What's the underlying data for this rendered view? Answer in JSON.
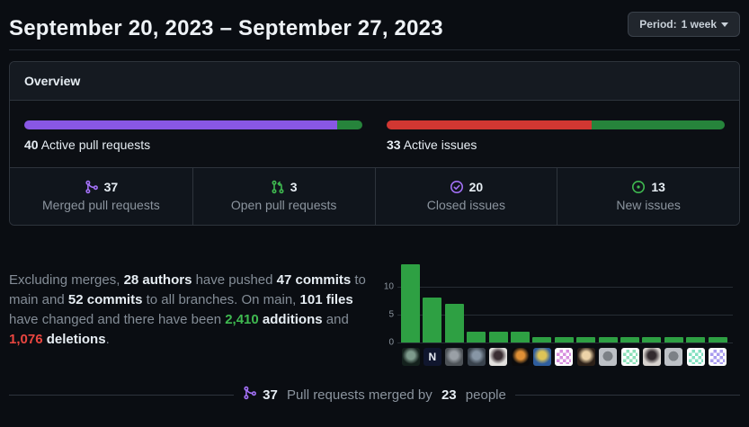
{
  "header": {
    "title": "September 20, 2023 – September 27, 2023",
    "period_button": {
      "prefix": "Period:",
      "value": "1 week"
    }
  },
  "overview": {
    "title": "Overview",
    "pull_requests": {
      "count": "40",
      "label": "Active pull requests",
      "segments": [
        {
          "name": "merged",
          "color": "#8957e5",
          "pct": 92.5
        },
        {
          "name": "open",
          "color": "#26843b",
          "pct": 7.5
        }
      ]
    },
    "issues": {
      "count": "33",
      "label": "Active issues",
      "segments": [
        {
          "name": "closed",
          "color": "#d13732",
          "pct": 60.6
        },
        {
          "name": "new",
          "color": "#26843b",
          "pct": 39.4
        }
      ]
    },
    "stats": [
      {
        "icon": "git-merge-icon",
        "icon_color": "#a371f7",
        "value": "37",
        "label": "Merged pull requests"
      },
      {
        "icon": "git-pull-request-icon",
        "icon_color": "#3fb950",
        "value": "3",
        "label": "Open pull requests"
      },
      {
        "icon": "issue-closed-icon",
        "icon_color": "#a371f7",
        "value": "20",
        "label": "Closed issues"
      },
      {
        "icon": "issue-opened-icon",
        "icon_color": "#3fb950",
        "value": "13",
        "label": "New issues"
      }
    ]
  },
  "summary": {
    "segments": [
      {
        "t": "Excluding merges, ",
        "s": "m"
      },
      {
        "t": "28 authors",
        "s": "b"
      },
      {
        "t": " have pushed ",
        "s": "m"
      },
      {
        "t": "47 commits",
        "s": "b"
      },
      {
        "t": " to main and ",
        "s": "m"
      },
      {
        "t": "52 commits",
        "s": "b"
      },
      {
        "t": " to all branches. On main, ",
        "s": "m"
      },
      {
        "t": "101 files",
        "s": "b"
      },
      {
        "t": " have changed and there have been ",
        "s": "m"
      },
      {
        "t": "2,410",
        "s": "g"
      },
      {
        "t": " ",
        "s": "m"
      },
      {
        "t": "additions",
        "s": "b"
      },
      {
        "t": " and ",
        "s": "m"
      },
      {
        "t": "1,076",
        "s": "r"
      },
      {
        "t": " ",
        "s": "m"
      },
      {
        "t": "deletions",
        "s": "b"
      },
      {
        "t": ".",
        "s": "m"
      }
    ]
  },
  "chart_data": {
    "type": "bar",
    "title": "",
    "xlabel": "contributor avatars",
    "ylabel": "",
    "categories": [
      "contributor-1",
      "contributor-2",
      "contributor-3",
      "contributor-4",
      "contributor-5",
      "contributor-6",
      "contributor-7",
      "contributor-8",
      "contributor-9",
      "contributor-10",
      "contributor-11",
      "contributor-12",
      "contributor-13",
      "contributor-14",
      "contributor-15"
    ],
    "values": [
      14,
      8,
      7,
      2,
      2,
      2,
      1,
      1,
      1,
      1,
      1,
      1,
      1,
      1,
      1
    ],
    "yticks": [
      0,
      5,
      10
    ],
    "ylim": [
      0,
      15
    ],
    "grid": true,
    "legend": "none",
    "bar_color": "#2ea043",
    "avatars": [
      {
        "kind": "photo",
        "bg": "#14211d",
        "fg": "#7d9a8c"
      },
      {
        "kind": "letter",
        "bg": "#10162e",
        "fg": "#e8ecf4",
        "char": "N"
      },
      {
        "kind": "photo",
        "bg": "#4d5257",
        "fg": "#9aa0a6"
      },
      {
        "kind": "photo",
        "bg": "#39424c",
        "fg": "#8796a5"
      },
      {
        "kind": "photo",
        "bg": "#e3e1df",
        "fg": "#3a2e33"
      },
      {
        "kind": "photo",
        "bg": "#0a0a0c",
        "fg": "#e09035"
      },
      {
        "kind": "photo",
        "bg": "#2e5d9e",
        "fg": "#ddc457"
      },
      {
        "kind": "identicon",
        "bg": "#ffffff",
        "fg": "#d78fdf"
      },
      {
        "kind": "photo",
        "bg": "#2c2018",
        "fg": "#ecd3a8"
      },
      {
        "kind": "octocat",
        "bg": "#bdc1c6",
        "fg": "#7c8186"
      },
      {
        "kind": "identicon",
        "bg": "#ffffff",
        "fg": "#8ce0b9"
      },
      {
        "kind": "photo",
        "bg": "#d8d3cf",
        "fg": "#322a2e"
      },
      {
        "kind": "octocat",
        "bg": "#bdc1c6",
        "fg": "#7c8186"
      },
      {
        "kind": "identicon",
        "bg": "#ffffff",
        "fg": "#82e0c0"
      },
      {
        "kind": "identicon",
        "bg": "#ffffff",
        "fg": "#a89bef"
      }
    ]
  },
  "footer": {
    "icon": "git-merge-icon",
    "icon_color": "#a371f7",
    "segments": [
      {
        "t": "37",
        "s": "b"
      },
      {
        "t": " Pull requests merged by ",
        "s": "m"
      },
      {
        "t": "23",
        "s": "b"
      },
      {
        "t": " people",
        "s": "m"
      }
    ]
  }
}
